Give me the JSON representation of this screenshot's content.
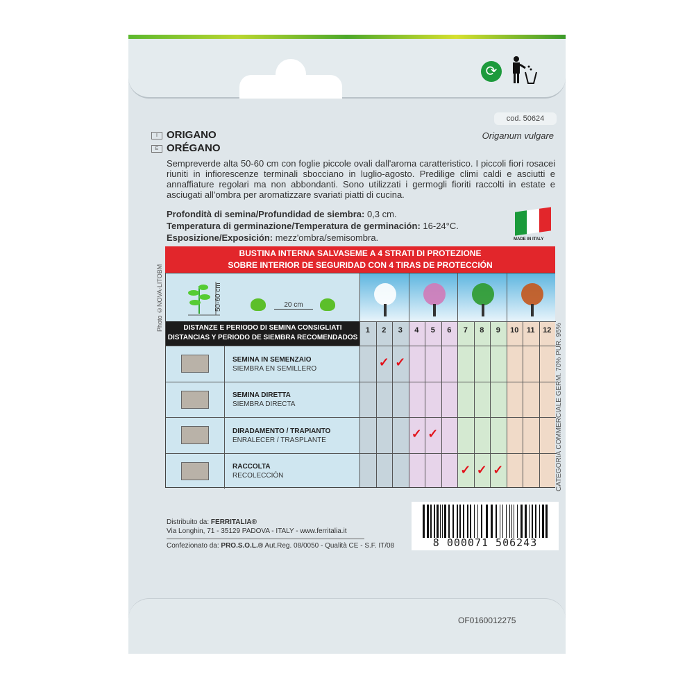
{
  "product_code": "cod. 50624",
  "names": [
    {
      "lang": "I",
      "name": "ORIGANO"
    },
    {
      "lang": "E",
      "name": "ORÉGANO"
    }
  ],
  "latin_name": "Origanum vulgare",
  "description": "Sempreverde alta 50-60 cm con foglie piccole ovali dall'aroma caratteristico. I piccoli fiori rosacei riuniti in infiorescenze terminali sbocciano in luglio-agosto. Predilige climi caldi e asciutti e annaffiature regolari ma non abbondanti. Sono utilizzati i germogli fioriti raccolti in estate e asciugati all'ombra per aromatizzare svariati piatti di cucina.",
  "specs": [
    {
      "label": "Profondità di semina/Profundidad de siembra:",
      "value": "0,3 cm."
    },
    {
      "label": "Temperatura di germinazione/Temperatura de germinación:",
      "value": "16-24°C."
    },
    {
      "label": "Esposizione/Exposición:",
      "value": "mezz'ombra/semisombra."
    }
  ],
  "made_in": "MADE IN ITALY",
  "flag_colors": [
    "#1a9a3a",
    "#ffffff",
    "#e2262b"
  ],
  "banner": {
    "line1": "BUSTINA INTERNA SALVASEME A 4 STRATI DI PROTEZIONE",
    "line2": "SOBRE INTERIOR DE SEGURIDAD CON 4 TIRAS DE PROTECCIÓN",
    "color": "#e2262b"
  },
  "photo_credit": "Photo ©NOVA-LITOBM",
  "plant_height": "50-60 cm",
  "plant_spacing": "20 cm",
  "table": {
    "header_line1": "DISTANZE E PERIODO DI SEMINA CONSIGLIATI",
    "header_line2": "DISTANCIAS Y PERIODO DE SIEMBRA RECOMENDADOS",
    "months": [
      "1",
      "2",
      "3",
      "4",
      "5",
      "6",
      "7",
      "8",
      "9",
      "10",
      "11",
      "12"
    ],
    "season_colors": [
      "#c6d4dc",
      "#e7d4ea",
      "#d4e9d1",
      "#f0dac8"
    ],
    "rows": [
      {
        "it": "SEMINA IN SEMENZAIO",
        "es": "SIEMBRA EN SEMILLERO",
        "icon": "seed-tray-icon",
        "months": [
          2,
          3
        ]
      },
      {
        "it": "SEMINA DIRETTA",
        "es": "SIEMBRA DIRECTA",
        "icon": "direct-sowing-icon",
        "months": []
      },
      {
        "it": "DIRADAMENTO / TRAPIANTO",
        "es": "ENRALECER / TRASPLANTE",
        "icon": "transplant-icon",
        "months": [
          4,
          5
        ]
      },
      {
        "it": "RACCOLTA",
        "es": "RECOLECCIÓN",
        "icon": "harvest-basket-icon",
        "months": [
          7,
          8,
          9
        ]
      }
    ],
    "check_symbol": "✓"
  },
  "quality": "CATEGORIA COMMERCIALE GERM. 70% PUR. 95%",
  "distributor": {
    "label": "Distribuito da:",
    "name": "FERRITALIA®",
    "address": "Via Longhin, 71 - 35129 PADOVA - ITALY - www.ferritalia.it"
  },
  "packager": {
    "label": "Confezionato da:",
    "name": "PRO.S.O.L.®",
    "details": "Aut.Reg. 08/0050 - Qualità CE - S.F. IT/08"
  },
  "barcode": "8 000071 506243",
  "batch_code": "OF0160012275"
}
